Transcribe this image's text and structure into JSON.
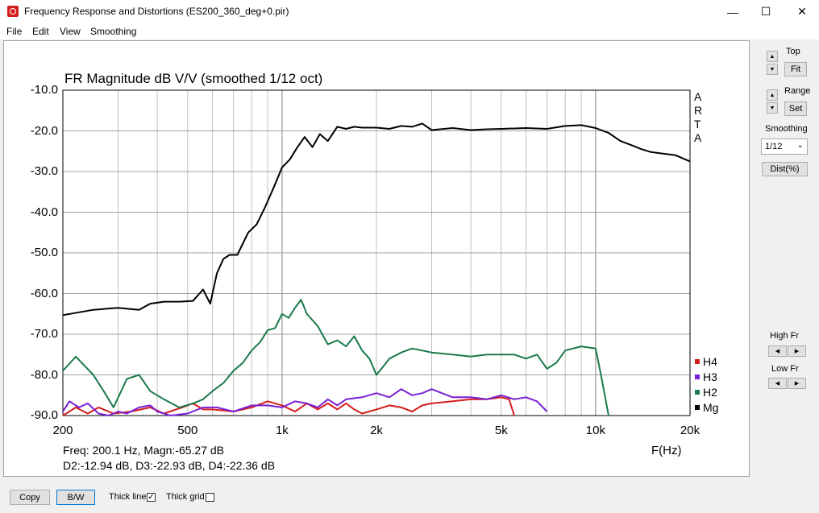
{
  "window": {
    "title": "Frequency Response and Distortions (ES200_360_deg+0.pir)",
    "minimize_glyph": "—",
    "maximize_glyph": "☐",
    "close_glyph": "✕"
  },
  "menu": [
    "File",
    "Edit",
    "View",
    "Smoothing"
  ],
  "side_panel": {
    "top_label": "Top",
    "fit_label": "Fit",
    "range_label": "Range",
    "set_label": "Set",
    "smoothing_label": "Smoothing",
    "smoothing_value": "1/12",
    "dist_label": "Dist(%)",
    "high_fr_label": "High Fr",
    "low_fr_label": "Low Fr"
  },
  "bottom_bar": {
    "copy_label": "Copy",
    "bw_label": "B/W",
    "thick_line_label": "Thick line",
    "thick_line_checked": true,
    "thick_grid_label": "Thick grid",
    "thick_grid_checked": false
  },
  "readout": {
    "line1": "Freq: 200.1 Hz, Magn:-65.27 dB",
    "line2": "D2:-12.94 dB, D3:-22.93 dB, D4:-22.36 dB"
  },
  "watermark_letters": [
    "A",
    "R",
    "T",
    "A"
  ],
  "chart_data": {
    "type": "line",
    "title": "FR Magnitude dB V/V (smoothed 1/12 oct)",
    "xlabel": "F(Hz)",
    "ylabel": "",
    "x_scale": "log",
    "xlim": [
      200,
      20000
    ],
    "ylim": [
      -90,
      -10
    ],
    "x_ticks": [
      200,
      500,
      1000,
      2000,
      5000,
      10000,
      20000
    ],
    "x_tick_labels": [
      "200",
      "500",
      "1k",
      "2k",
      "5k",
      "10k",
      "20k"
    ],
    "y_ticks": [
      -10,
      -20,
      -30,
      -40,
      -50,
      -60,
      -70,
      -80,
      -90
    ],
    "y_tick_labels": [
      "-10.0",
      "-20.0",
      "-30.0",
      "-40.0",
      "-50.0",
      "-60.0",
      "-70.0",
      "-80.0",
      "-90.0"
    ],
    "grid": true,
    "legend_position": "right, bottom",
    "series": [
      {
        "name": "Mg",
        "color": "#000000",
        "x": [
          200,
          250,
          300,
          350,
          380,
          420,
          470,
          520,
          560,
          590,
          620,
          650,
          680,
          720,
          780,
          830,
          880,
          940,
          1000,
          1060,
          1120,
          1180,
          1250,
          1320,
          1400,
          1500,
          1600,
          1700,
          1800,
          2000,
          2200,
          2400,
          2600,
          2800,
          3000,
          3500,
          4000,
          4500,
          5000,
          6000,
          7000,
          8000,
          9000,
          10000,
          11000,
          12000,
          13000,
          14000,
          15000,
          16000,
          18000,
          20000
        ],
        "y": [
          -65.3,
          -64,
          -63.5,
          -64,
          -62.5,
          -62,
          -62,
          -61.8,
          -59,
          -62.5,
          -55,
          -51.5,
          -50.5,
          -50.5,
          -45,
          -43,
          -39,
          -34,
          -29,
          -27,
          -24,
          -21.5,
          -24,
          -20.8,
          -22.5,
          -19,
          -19.5,
          -19,
          -19.2,
          -19.2,
          -19.5,
          -18.8,
          -19,
          -18.2,
          -19.8,
          -19.3,
          -19.8,
          -19.6,
          -19.5,
          -19.3,
          -19.5,
          -18.8,
          -18.6,
          -19.3,
          -20.5,
          -22.5,
          -23.5,
          -24.5,
          -25.2,
          -25.5,
          -26,
          -27.5
        ]
      },
      {
        "name": "H2",
        "color": "#1a7a4a",
        "x": [
          200,
          220,
          250,
          270,
          290,
          320,
          350,
          380,
          420,
          470,
          520,
          560,
          600,
          650,
          700,
          750,
          800,
          850,
          900,
          950,
          1000,
          1050,
          1100,
          1150,
          1200,
          1300,
          1400,
          1500,
          1600,
          1700,
          1800,
          1900,
          2000,
          2100,
          2200,
          2400,
          2600,
          3000,
          3500,
          4000,
          4500,
          5000,
          5500,
          6000,
          6500,
          7000,
          7500,
          8000,
          9000,
          10000,
          10400,
          11000
        ],
        "y": [
          -79,
          -75.5,
          -80,
          -84,
          -88,
          -81,
          -80,
          -84,
          -86,
          -88,
          -87,
          -86,
          -84,
          -82,
          -79,
          -77,
          -74,
          -72,
          -69,
          -68.5,
          -65,
          -66,
          -63.5,
          -61.5,
          -65,
          -68,
          -72.5,
          -71.5,
          -73,
          -70.5,
          -74,
          -76,
          -80,
          -78,
          -76,
          -74.5,
          -73.5,
          -74.5,
          -75,
          -75.5,
          -75,
          -75,
          -75,
          -76,
          -75,
          -78.5,
          -77,
          -74,
          -73,
          -73.5,
          -80,
          -90
        ]
      },
      {
        "name": "H3",
        "color": "#7a1fd6",
        "x": [
          200,
          210,
          225,
          240,
          260,
          280,
          300,
          320,
          350,
          380,
          400,
          420,
          440,
          500,
          560,
          620,
          700,
          800,
          900,
          1000,
          1100,
          1200,
          1300,
          1400,
          1500,
          1600,
          1800,
          2000,
          2200,
          2400,
          2600,
          2800,
          3000,
          3500,
          4000,
          4500,
          5000,
          5500,
          6000,
          6500,
          7000
        ],
        "y": [
          -89,
          -86.5,
          -88,
          -87,
          -89.5,
          -90,
          -89,
          -89.5,
          -88,
          -87.5,
          -89,
          -89.5,
          -90,
          -89.5,
          -88,
          -88,
          -89,
          -87.5,
          -87.5,
          -88,
          -86.5,
          -87,
          -88,
          -86,
          -87.5,
          -86,
          -85.5,
          -84.5,
          -85.5,
          -83.5,
          -85,
          -84.5,
          -83.5,
          -85.5,
          -85.5,
          -86,
          -85,
          -86,
          -85.5,
          -86.5,
          -89
        ]
      },
      {
        "name": "H4",
        "color": "#d41c1c",
        "x": [
          200,
          220,
          240,
          260,
          290,
          330,
          380,
          420,
          480,
          520,
          560,
          600,
          700,
          800,
          900,
          1000,
          1100,
          1200,
          1300,
          1400,
          1500,
          1600,
          1700,
          1800,
          2000,
          2200,
          2400,
          2600,
          2800,
          3000,
          3500,
          4000,
          4500,
          5000,
          5300,
          5500
        ],
        "y": [
          -90,
          -88,
          -89.5,
          -88,
          -89.5,
          -89,
          -88,
          -89.5,
          -88,
          -87,
          -88.5,
          -88.5,
          -89,
          -88,
          -86.5,
          -87.5,
          -89,
          -87,
          -88.5,
          -87,
          -88.5,
          -87,
          -88.5,
          -89.5,
          -88.5,
          -87.5,
          -88,
          -89,
          -87.5,
          -87,
          -86.5,
          -86,
          -86,
          -85.5,
          -86,
          -90
        ]
      }
    ]
  }
}
